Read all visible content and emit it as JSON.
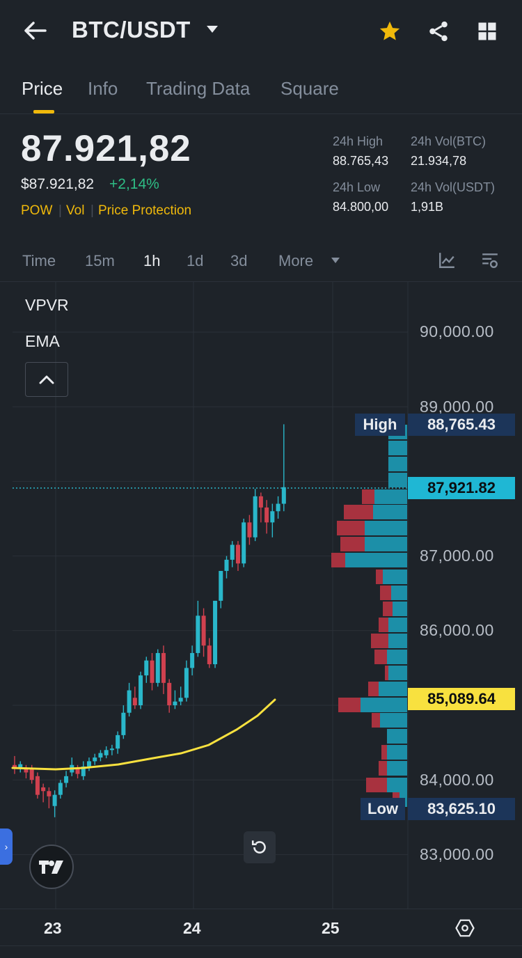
{
  "header": {
    "pair": "BTC/USDT",
    "icons": [
      "back-arrow-icon",
      "chevron-down-icon",
      "star-icon",
      "share-icon",
      "grid-icon"
    ]
  },
  "tabs": [
    {
      "label": "Price",
      "active": true
    },
    {
      "label": "Info",
      "active": false
    },
    {
      "label": "Trading Data",
      "active": false
    },
    {
      "label": "Square",
      "active": false
    }
  ],
  "price": {
    "last": "87.921,82",
    "usd": "$87.921,82",
    "change": "+2,14%",
    "tags": [
      "POW",
      "Vol",
      "Price Protection"
    ]
  },
  "stats": {
    "high_label": "24h High",
    "high_value": "88.765,43",
    "volbtc_label": "24h Vol(BTC)",
    "volbtc_value": "21.934,78",
    "low_label": "24h Low",
    "low_value": "84.800,00",
    "volusdt_label": "24h Vol(USDT)",
    "volusdt_value": "1,91B"
  },
  "intervals": [
    {
      "label": "Time",
      "active": false
    },
    {
      "label": "15m",
      "active": false
    },
    {
      "label": "1h",
      "active": true
    },
    {
      "label": "1d",
      "active": false
    },
    {
      "label": "3d",
      "active": false
    },
    {
      "label": "More",
      "active": false
    }
  ],
  "chart": {
    "indicators": [
      "VPVR",
      "EMA"
    ],
    "y_ticks": [
      "90,000.00",
      "89,000.00",
      "87,000.00",
      "86,000.00",
      "84,000.00",
      "83,000.00"
    ],
    "x_ticks": [
      "23",
      "24",
      "25"
    ],
    "high_label": "High",
    "high_value": "88,765.43",
    "last_value": "87,921.82",
    "ema_value": "85,089.64",
    "low_label": "Low",
    "low_value": "83,625.10",
    "colors": {
      "up": "#2ab7ca",
      "down": "#d0414f",
      "ema": "#f8e13f",
      "accent": "#f0b90b"
    }
  }
}
